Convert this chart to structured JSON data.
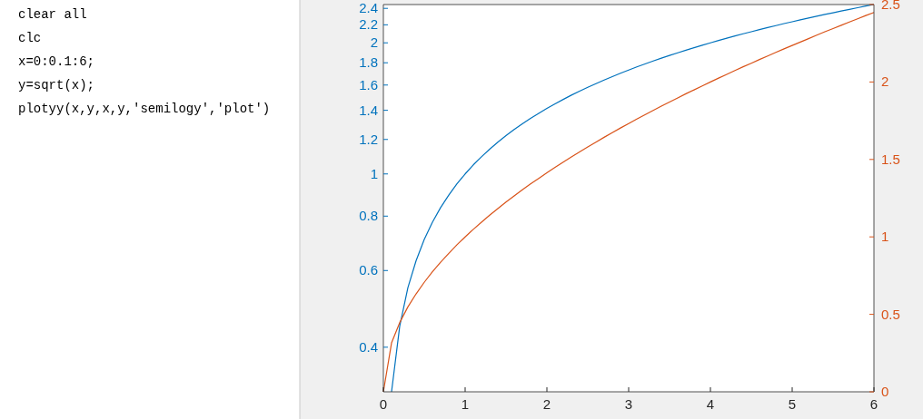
{
  "chart_data": {
    "type": "line",
    "log": "y",
    "x": [
      0,
      0.1,
      0.2,
      0.3,
      0.4,
      0.5,
      0.6,
      0.7,
      0.8,
      0.9,
      1,
      1.1,
      1.2,
      1.3,
      1.4,
      1.5,
      1.6,
      1.7,
      1.8,
      1.9,
      2,
      2.1,
      2.2,
      2.3,
      2.4,
      2.5,
      2.6,
      2.7,
      2.8,
      2.9,
      3,
      3.1,
      3.2,
      3.3,
      3.4,
      3.5,
      3.6,
      3.7,
      3.8,
      3.9,
      4,
      4.1,
      4.2,
      4.3,
      4.4,
      4.5,
      4.6,
      4.7,
      4.8,
      4.9,
      5,
      5.1,
      5.2,
      5.3,
      5.4,
      5.5,
      5.6,
      5.7,
      5.8,
      5.9,
      6
    ],
    "series": [
      {
        "color": "#0072bd",
        "values": [
          null,
          0.316,
          0.447,
          0.548,
          0.632,
          0.707,
          0.775,
          0.837,
          0.894,
          0.949,
          1,
          1.049,
          1.095,
          1.14,
          1.183,
          1.225,
          1.265,
          1.304,
          1.342,
          1.378,
          1.414,
          1.449,
          1.483,
          1.517,
          1.549,
          1.581,
          1.612,
          1.643,
          1.673,
          1.703,
          1.732,
          1.761,
          1.789,
          1.817,
          1.844,
          1.871,
          1.897,
          1.924,
          1.949,
          1.975,
          2,
          2.025,
          2.049,
          2.074,
          2.098,
          2.121,
          2.145,
          2.168,
          2.191,
          2.214,
          2.236,
          2.258,
          2.28,
          2.302,
          2.324,
          2.345,
          2.366,
          2.387,
          2.408,
          2.429,
          2.449
        ]
      },
      {
        "color": "#d95319",
        "axis": "y2",
        "values": [
          0,
          0.316,
          0.447,
          0.548,
          0.632,
          0.707,
          0.775,
          0.837,
          0.894,
          0.949,
          1,
          1.049,
          1.095,
          1.14,
          1.183,
          1.225,
          1.265,
          1.304,
          1.342,
          1.378,
          1.414,
          1.449,
          1.483,
          1.517,
          1.549,
          1.581,
          1.612,
          1.643,
          1.673,
          1.703,
          1.732,
          1.761,
          1.789,
          1.817,
          1.844,
          1.871,
          1.897,
          1.924,
          1.949,
          1.975,
          2,
          2.025,
          2.049,
          2.074,
          2.098,
          2.121,
          2.145,
          2.168,
          2.191,
          2.214,
          2.236,
          2.258,
          2.28,
          2.302,
          2.324,
          2.345,
          2.366,
          2.387,
          2.408,
          2.429,
          2.449
        ]
      }
    ],
    "xlim": [
      0,
      6
    ],
    "xticks": [
      0,
      1,
      2,
      3,
      4,
      5,
      6
    ],
    "ylim": [
      0.316,
      2.449
    ],
    "yticks": [
      0.4,
      0.6,
      0.8,
      1,
      1.2,
      1.4,
      1.6,
      1.8,
      2,
      2.2,
      2.4
    ],
    "y2lim": [
      0,
      2.5
    ],
    "y2ticks": [
      0,
      0.5,
      1,
      1.5,
      2,
      2.5
    ],
    "grid": false,
    "annotations": [
      "clear all",
      "clc",
      "x=0:0.1:6;",
      "y=sqrt(x);",
      "plotyy(x,y,x,y,'semilogy','plot')"
    ]
  }
}
